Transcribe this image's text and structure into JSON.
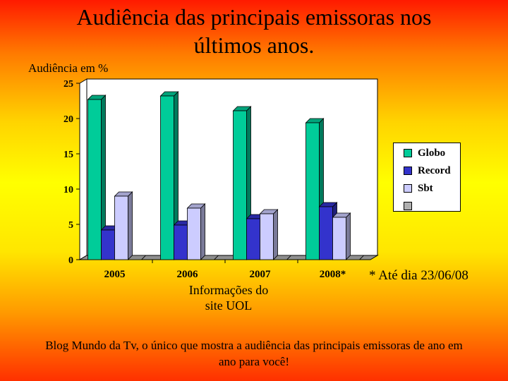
{
  "page": {
    "title_line1": "Audiência das principais emissoras nos",
    "title_line2": "últimos anos.",
    "note": "* Até dia 23/06/08",
    "source_line1": "Informações do",
    "source_line2": "site UOL",
    "footer_line1": "Blog Mundo da Tv, o único que mostra a audiência das principais emissoras de ano em",
    "footer_line2": "ano para você!"
  },
  "chart_data": {
    "type": "bar",
    "style": "3d-clustered-column",
    "ylabel": "Audiência em %",
    "xlabel": "",
    "ylim": [
      0,
      25
    ],
    "yticks": [
      0,
      5,
      10,
      15,
      20,
      25
    ],
    "categories": [
      "2005",
      "2006",
      "2007",
      "2008*"
    ],
    "series": [
      {
        "name": "Globo",
        "color": "#00cc99",
        "values": [
          22.7,
          23.2,
          21.1,
          19.4
        ]
      },
      {
        "name": "Record",
        "color": "#3333cc",
        "values": [
          4.2,
          4.9,
          5.8,
          7.5
        ]
      },
      {
        "name": "Sbt",
        "color": "#ccccff",
        "values": [
          9.0,
          7.3,
          6.5,
          6.0
        ]
      },
      {
        "name": "",
        "color": "#b0b0b0",
        "values": [
          0,
          0,
          0,
          0
        ]
      }
    ],
    "legend_position": "right",
    "grid": false,
    "background": "#ffffff"
  }
}
